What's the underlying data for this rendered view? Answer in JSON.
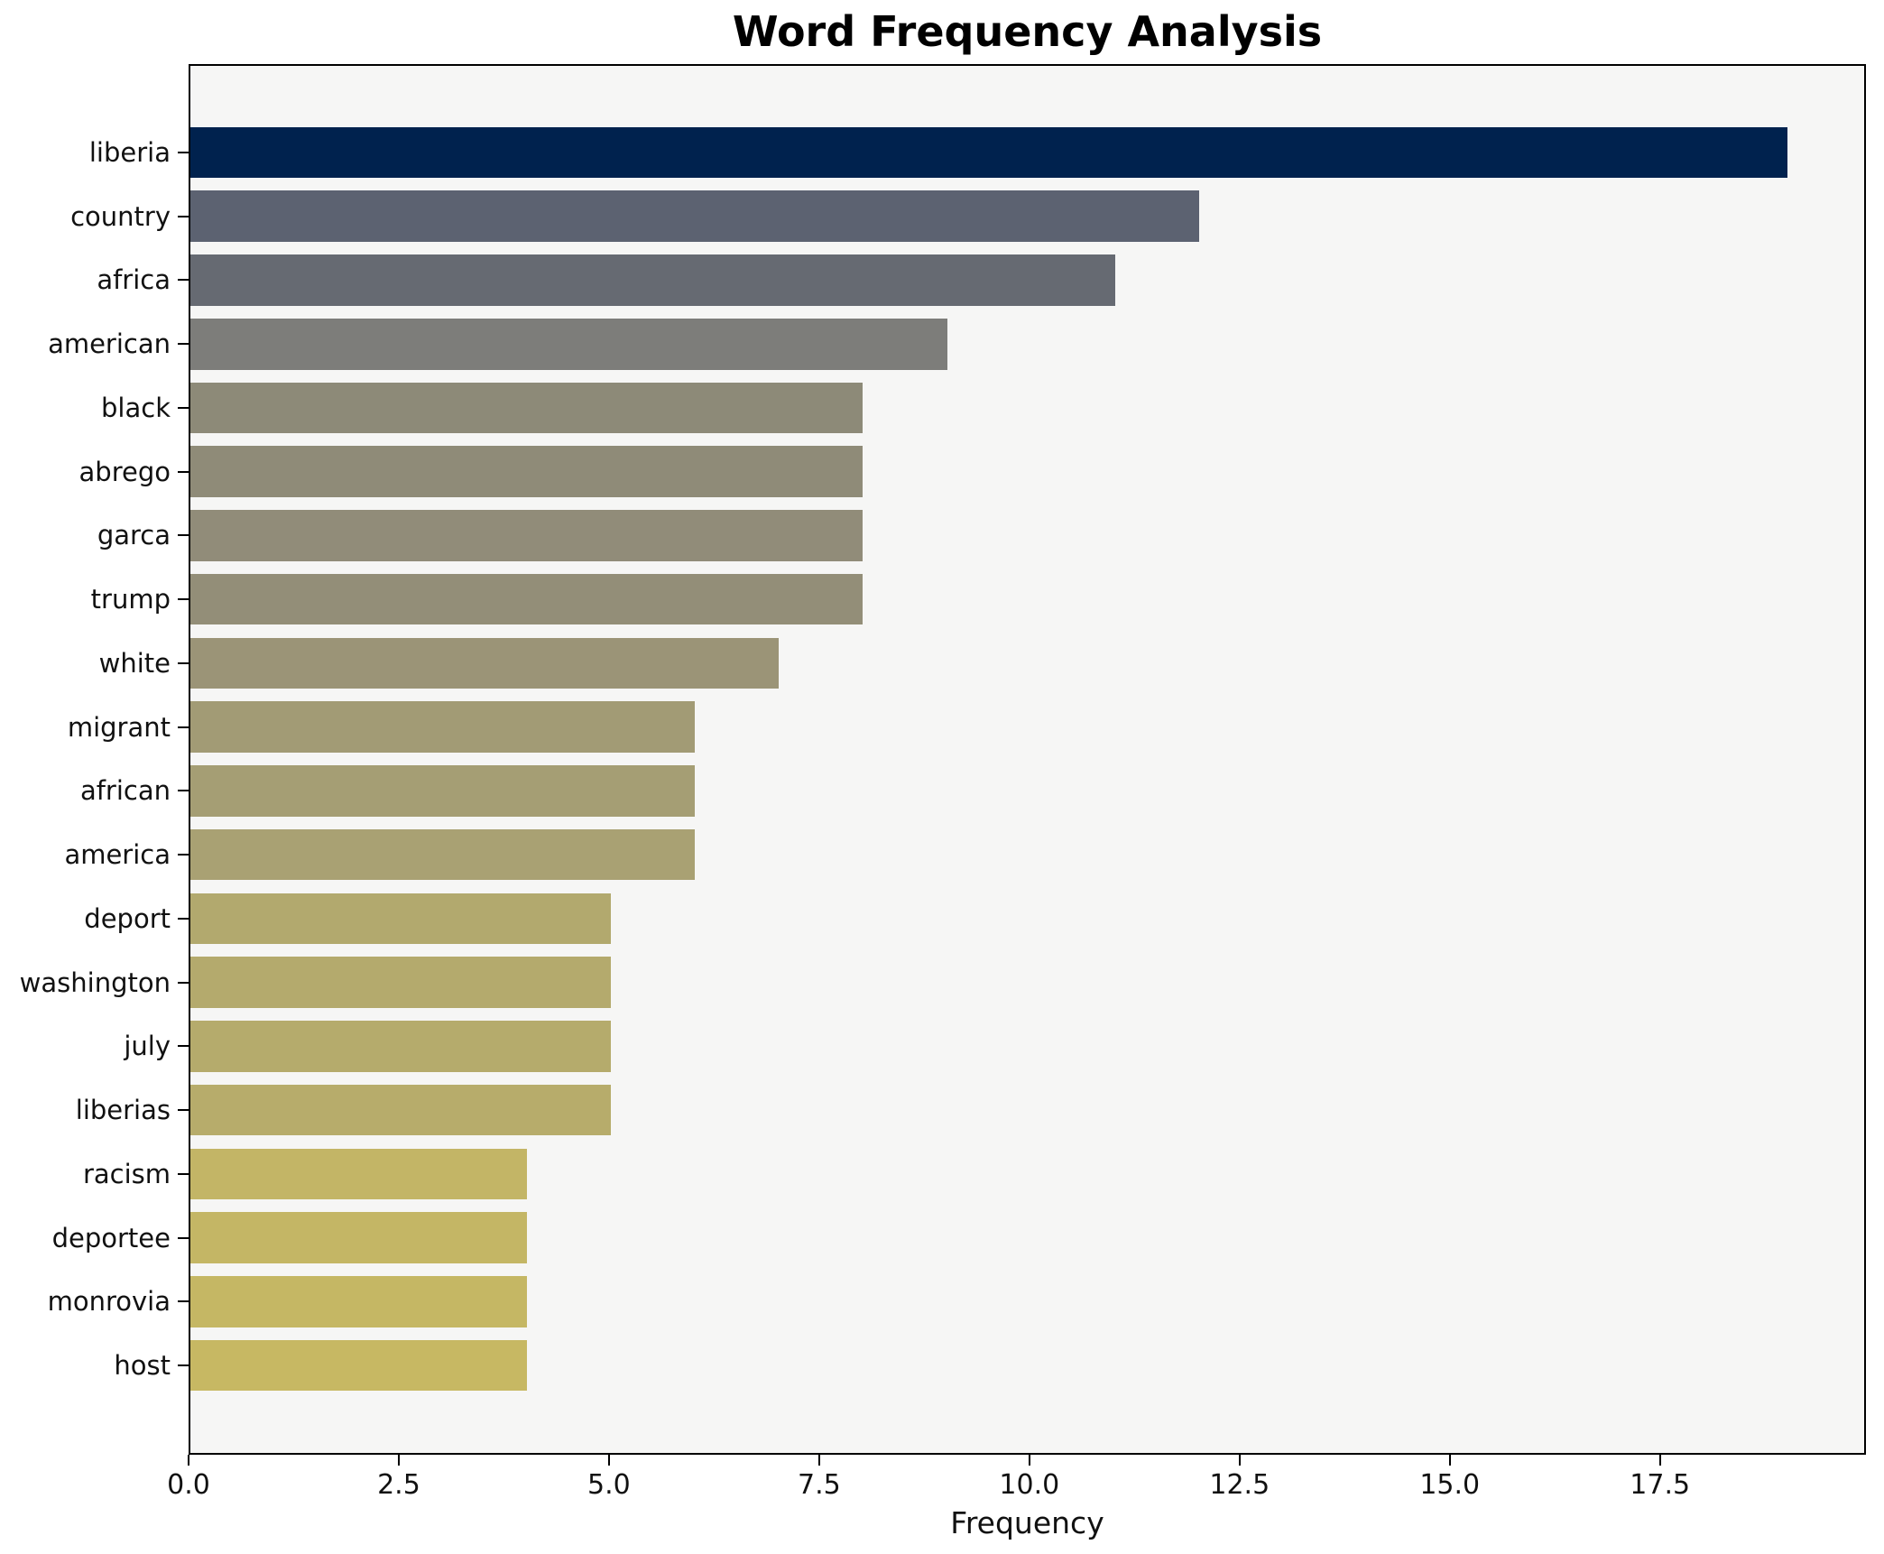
{
  "chart_data": {
    "type": "bar",
    "orientation": "horizontal",
    "title": "Word Frequency Analysis",
    "xlabel": "Frequency",
    "ylabel": "",
    "grid": false,
    "legend": null,
    "plot_background": "#f6f6f5",
    "figure_background": "#ffffff",
    "xlim": [
      0,
      19.95
    ],
    "x_ticks": [
      {
        "value": 0,
        "label": "0.0"
      },
      {
        "value": 2.5,
        "label": "2.5"
      },
      {
        "value": 5,
        "label": "5.0"
      },
      {
        "value": 7.5,
        "label": "7.5"
      },
      {
        "value": 10,
        "label": "10.0"
      },
      {
        "value": 12.5,
        "label": "12.5"
      },
      {
        "value": 15,
        "label": "15.0"
      },
      {
        "value": 17.5,
        "label": "17.5"
      }
    ],
    "categories": [
      "liberia",
      "country",
      "africa",
      "american",
      "black",
      "abrego",
      "garca",
      "trump",
      "white",
      "migrant",
      "african",
      "america",
      "deport",
      "washington",
      "july",
      "liberias",
      "racism",
      "deportee",
      "monrovia",
      "host"
    ],
    "values": [
      19,
      12,
      11,
      9,
      8,
      8,
      8,
      8,
      7,
      6,
      6,
      6,
      5,
      5,
      5,
      5,
      4,
      4,
      4,
      4
    ],
    "bar_colors": [
      "#00224e",
      "#5c6271",
      "#666a72",
      "#7d7d7a",
      "#8d8a78",
      "#8f8b78",
      "#918c79",
      "#938e78",
      "#9b9477",
      "#a29b75",
      "#a59e74",
      "#a9a173",
      "#b2a96e",
      "#b4aa6d",
      "#b5ab6c",
      "#b7ac6b",
      "#c3b566",
      "#c4b665",
      "#c5b764",
      "#c7b863"
    ]
  }
}
